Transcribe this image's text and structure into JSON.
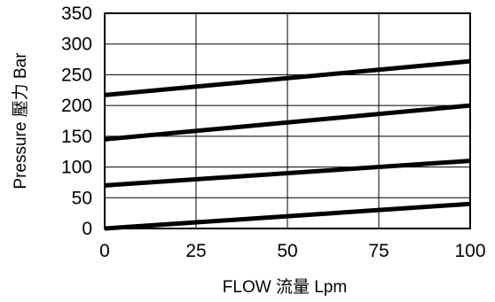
{
  "chart_data": {
    "type": "line",
    "title": "",
    "xlabel": "FLOW 流量 Lpm",
    "ylabel": "Pressure 壓力 Bar",
    "xlim": [
      0,
      100
    ],
    "ylim": [
      0,
      350
    ],
    "xticks": [
      0,
      25,
      50,
      75,
      100
    ],
    "yticks": [
      0,
      50,
      100,
      150,
      200,
      250,
      300,
      350
    ],
    "xtick_labels": [
      "0",
      "25",
      "50",
      "75",
      "100"
    ],
    "ytick_labels": [
      "0",
      "50",
      "100",
      "150",
      "200",
      "250",
      "300",
      "350"
    ],
    "grid": true,
    "legend": "none",
    "line_color": "#000000",
    "series": [
      {
        "x": [
          0,
          100
        ],
        "y": [
          0,
          40
        ]
      },
      {
        "x": [
          0,
          100
        ],
        "y": [
          70,
          110
        ]
      },
      {
        "x": [
          0,
          100
        ],
        "y": [
          145,
          200
        ]
      },
      {
        "x": [
          0,
          100
        ],
        "y": [
          217,
          272
        ]
      }
    ]
  }
}
